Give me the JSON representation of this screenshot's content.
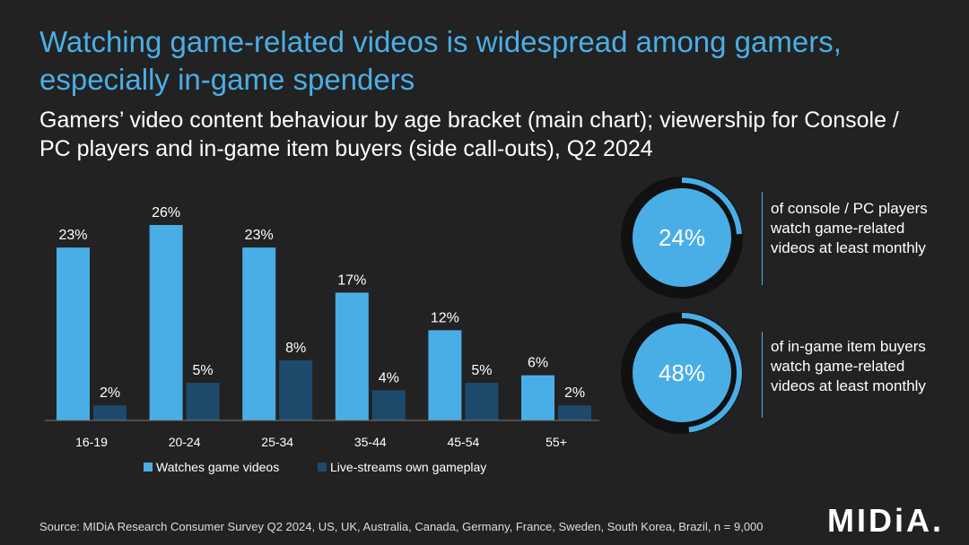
{
  "title": "Watching game-related videos is widespread among gamers, especially in-game spenders",
  "subtitle": "Gamers’ video content behaviour by age bracket (main chart); viewership for Console / PC players and in-game item buyers (side call-outs), Q2 2024",
  "colors": {
    "primary": "#4aaee6",
    "secondary": "#1d4a6b",
    "background": "#222222",
    "ring_track": "#111111"
  },
  "chart_data": {
    "type": "bar",
    "categories": [
      "16-19",
      "20-24",
      "25-34",
      "35-44",
      "45-54",
      "55+"
    ],
    "series": [
      {
        "name": "Watches game videos",
        "values": [
          23,
          26,
          23,
          17,
          12,
          6
        ],
        "color": "#4aaee6"
      },
      {
        "name": "Live-streams own gameplay",
        "values": [
          2,
          5,
          8,
          4,
          5,
          2
        ],
        "color": "#1d4a6b"
      }
    ],
    "value_suffix": "%",
    "ylim": [
      0,
      26
    ],
    "grid": false,
    "legend_position": "bottom",
    "xlabel": "",
    "ylabel": ""
  },
  "callouts": [
    {
      "value": 24,
      "label": "24%",
      "text": "of console / PC players watch game-related videos at least monthly"
    },
    {
      "value": 48,
      "label": "48%",
      "text": "of in-game item buyers watch game-related videos at least monthly"
    }
  ],
  "source": "Source: MIDiA Research Consumer Survey Q2 2024, US, UK, Australia, Canada, Germany, France, Sweden, South Korea, Brazil, n = 9,000",
  "logo": "MIDiA."
}
